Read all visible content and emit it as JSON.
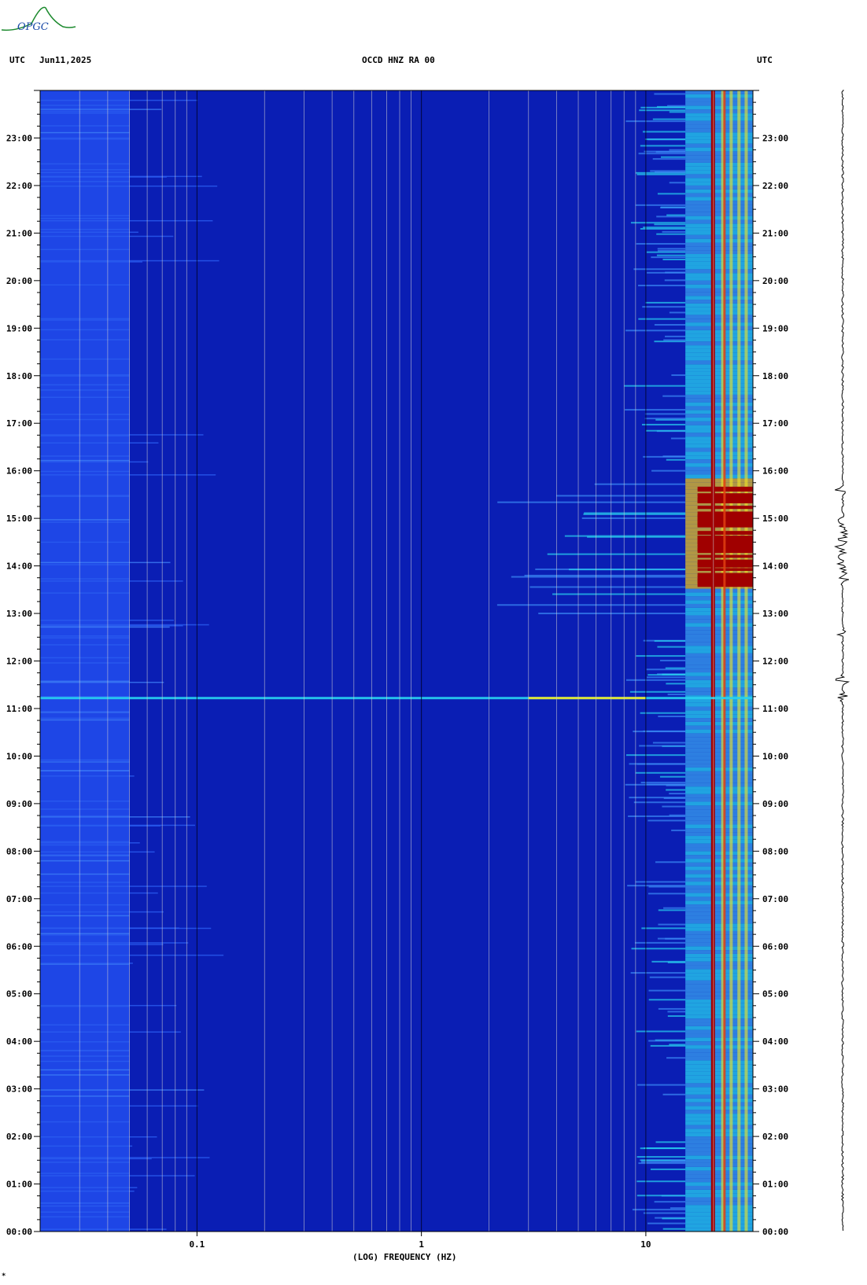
{
  "header": {
    "left_tz": "UTC",
    "date": "Jun11,2025",
    "station": "OCCD HNZ RA 00",
    "right_tz": "UTC"
  },
  "logo_text": "OPGC",
  "footer_mark": "*",
  "colors": {
    "background_blue": "#0a1eb4",
    "low_band_blue": "#1e46e6",
    "hot_red": "#a00000",
    "cyan": "#28d2f0",
    "yellow": "#f0e628",
    "grid_line": "#c8c8d2"
  },
  "chart_data": {
    "type": "heatmap",
    "title": "OCCD HNZ RA 00",
    "xlabel": "(LOG) FREQUENCY (HZ)",
    "xscale": "log",
    "xlim": [
      0.02,
      30
    ],
    "x_tick_labels": [
      "0.1",
      "1",
      "10"
    ],
    "x_tick_values": [
      0.1,
      1,
      10
    ],
    "ylabel": "UTC",
    "ylim_hours": [
      0,
      24
    ],
    "y_tick_labels": [
      "00:00",
      "01:00",
      "02:00",
      "03:00",
      "04:00",
      "05:00",
      "06:00",
      "07:00",
      "08:00",
      "09:00",
      "10:00",
      "11:00",
      "12:00",
      "13:00",
      "14:00",
      "15:00",
      "16:00",
      "17:00",
      "18:00",
      "19:00",
      "20:00",
      "21:00",
      "22:00",
      "23:00"
    ],
    "colormap": "jet",
    "features": [
      {
        "name": "persistent line",
        "freq_hz": 20,
        "hours": [
          0,
          24
        ],
        "level": "red"
      },
      {
        "name": "high band noise",
        "freq_hz": [
          15,
          30
        ],
        "hours": [
          0,
          24
        ],
        "level": "cyan-yellow"
      },
      {
        "name": "event band",
        "freq_hz": [
          2,
          30
        ],
        "hours": [
          13.5,
          15.8
        ],
        "level": "red"
      },
      {
        "name": "broadband line",
        "freq_hz": [
          0.02,
          30
        ],
        "hours": [
          11.2,
          11.25
        ],
        "level": "cyan-yellow"
      }
    ],
    "trace": {
      "label": "seismogram",
      "bursts_hours": [
        11.25,
        11.6,
        12.6,
        13.7,
        14.0,
        14.4,
        14.85,
        15.6
      ]
    }
  }
}
